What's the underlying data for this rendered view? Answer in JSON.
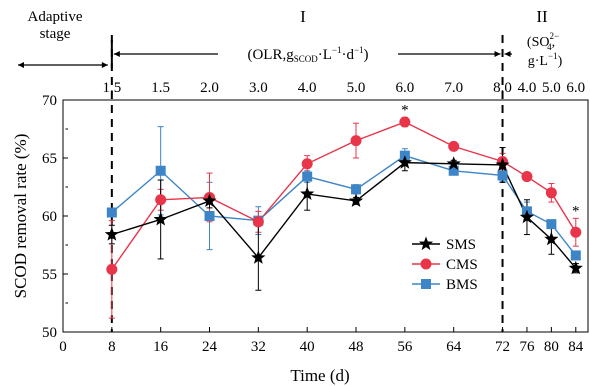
{
  "chart_data": {
    "type": "line",
    "ylabel": "SCOD removal rate (%)",
    "xlabel": "Time (d)",
    "xlim": [
      0,
      86
    ],
    "ylim": [
      50,
      70
    ],
    "x_ticks": [
      0,
      8,
      16,
      24,
      32,
      40,
      48,
      56,
      64,
      72,
      76,
      80,
      84
    ],
    "y_ticks": [
      50,
      55,
      60,
      65,
      70
    ],
    "x": [
      8,
      16,
      24,
      32,
      40,
      48,
      56,
      64,
      72,
      76,
      80,
      84
    ],
    "series": [
      {
        "name": "SMS",
        "color": "#000000",
        "marker": "star",
        "values": [
          58.4,
          59.7,
          61.3,
          56.4,
          61.9,
          61.3,
          64.6,
          64.5,
          64.4,
          59.9,
          58.0,
          55.5
        ],
        "error": [
          0.8,
          3.4,
          0.6,
          2.8,
          1.4,
          0.3,
          0.7,
          0.3,
          1.5,
          1.5,
          1.3,
          0.4
        ]
      },
      {
        "name": "CMS",
        "color": "#e8354a",
        "marker": "circle",
        "values": [
          55.4,
          61.4,
          61.6,
          59.5,
          64.5,
          66.5,
          68.1,
          66.0,
          64.7,
          63.4,
          62.0,
          58.6
        ],
        "error": [
          4.2,
          0.9,
          2.1,
          0.9,
          0.7,
          1.5,
          0.4,
          0.0,
          0.7,
          0.0,
          0.8,
          1.2
        ]
      },
      {
        "name": "BMS",
        "color": "#3d85c6",
        "marker": "square",
        "values": [
          60.3,
          63.9,
          60.0,
          59.6,
          63.4,
          62.3,
          65.2,
          63.9,
          63.5,
          60.4,
          59.3,
          56.6
        ],
        "error": [
          0.0,
          3.8,
          2.9,
          1.2,
          0.5,
          0.4,
          0.6,
          0.3,
          0.5,
          0.8,
          0.3,
          0.3
        ]
      }
    ],
    "legend": {
      "position": "lower-right",
      "entries": [
        "SMS",
        "CMS",
        "BMS"
      ]
    },
    "annotations": [
      {
        "text": "*",
        "x": 56,
        "series": "CMS"
      },
      {
        "text": "*",
        "x": 84,
        "series": "CMS"
      }
    ],
    "dividers_x": [
      8,
      72
    ],
    "top_axis": {
      "stage_label_line1": "Adaptive",
      "stage_label_line2": "stage",
      "phase1_numeral": "I",
      "phase2_numeral": "II",
      "phase1_unit_text": "(OLR,g",
      "phase1_unit_sub": "SCOD",
      "phase1_unit_rest_a": "·L",
      "phase1_unit_rest_b": "·d",
      "phase1_unit_close": ")",
      "neg_one": "−1",
      "phase2_line1_open": "(SO",
      "phase2_sub": "4",
      "phase2_sup": "2−",
      "phase2_line1_close": ",",
      "phase2_line2_a": "g·L",
      "phase2_line2_b": ")",
      "labels": [
        {
          "x": 8,
          "text": "1.5"
        },
        {
          "x": 16,
          "text": "1.5"
        },
        {
          "x": 24,
          "text": "2.0"
        },
        {
          "x": 32,
          "text": "3.0"
        },
        {
          "x": 40,
          "text": "4.0"
        },
        {
          "x": 48,
          "text": "5.0"
        },
        {
          "x": 56,
          "text": "6.0"
        },
        {
          "x": 64,
          "text": "7.0"
        },
        {
          "x": 72,
          "text": "8.0"
        },
        {
          "x": 76,
          "text": "4.0"
        },
        {
          "x": 80,
          "text": "5.0"
        },
        {
          "x": 84,
          "text": "6.0"
        }
      ]
    }
  }
}
